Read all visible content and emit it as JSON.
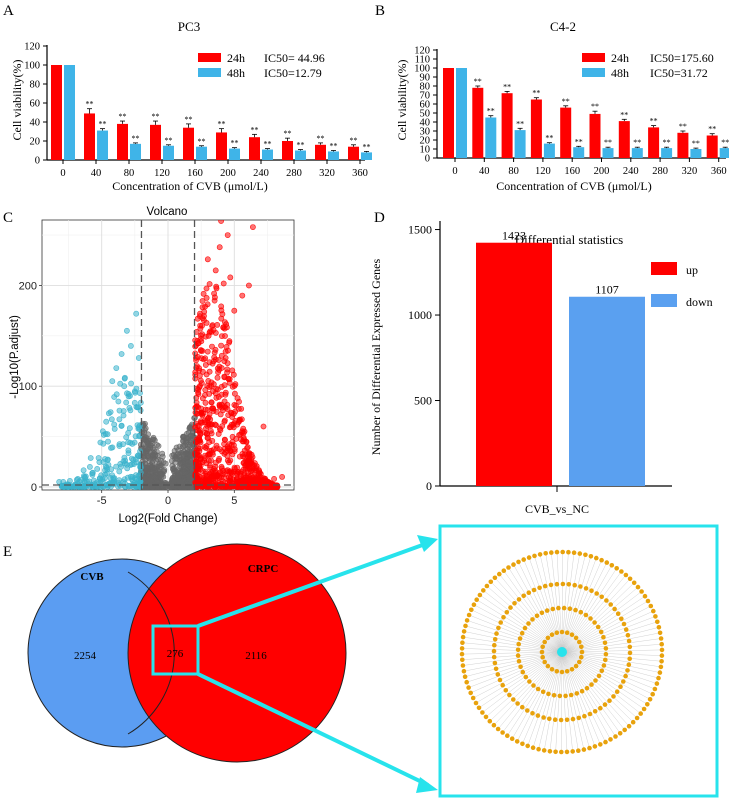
{
  "panel_labels": {
    "a": "A",
    "b": "B",
    "c": "C",
    "d": "D",
    "e": "E"
  },
  "colors": {
    "red": "#ff0000",
    "blue": "#3fb4e8",
    "teal": "#3ab3cc",
    "gray": "#666666",
    "orange": "#e8a20c",
    "cyan": "#27e3ec",
    "venn_blue": "#5b9df2",
    "down_blue": "#5aa0f0"
  },
  "chart_data": [
    {
      "id": "pc3",
      "type": "bar",
      "title": "PC3",
      "xlabel": "Concentration of CVB (μmol/L)",
      "ylabel": "Cell viability(%)",
      "categories": [
        "0",
        "40",
        "80",
        "120",
        "160",
        "200",
        "240",
        "280",
        "320",
        "360"
      ],
      "series": [
        {
          "name": "24h",
          "values": [
            100,
            49,
            38,
            37,
            34,
            29,
            24,
            20,
            16,
            14
          ]
        },
        {
          "name": "48h",
          "values": [
            100,
            31,
            17,
            15,
            14,
            12,
            11,
            10,
            9,
            8
          ]
        }
      ],
      "errors": [
        [
          0,
          5,
          3,
          4,
          4,
          4,
          3,
          3,
          2,
          2
        ],
        [
          0,
          2,
          1,
          1,
          1,
          1,
          1,
          1,
          1,
          1
        ]
      ],
      "sig": "**",
      "ic50": [
        "IC50= 44.96",
        "IC50=12.79"
      ],
      "ylim": [
        0,
        120
      ],
      "yticks": [
        0,
        20,
        40,
        60,
        80,
        100,
        120
      ]
    },
    {
      "id": "c42",
      "type": "bar",
      "title": "C4-2",
      "xlabel": "Concentration of CVB (μmol/L)",
      "ylabel": "Cell viability(%)",
      "categories": [
        "0",
        "40",
        "80",
        "120",
        "160",
        "200",
        "240",
        "280",
        "320",
        "360"
      ],
      "series": [
        {
          "name": "24h",
          "values": [
            100,
            78,
            72,
            65,
            56,
            49,
            41,
            34,
            28,
            25
          ]
        },
        {
          "name": "48h",
          "values": [
            100,
            45,
            31,
            16,
            12,
            11,
            11,
            11,
            10,
            11
          ]
        }
      ],
      "errors": [
        [
          0,
          2,
          2,
          2,
          2,
          3,
          2,
          2,
          2,
          2
        ],
        [
          0,
          2,
          2,
          1,
          1,
          1,
          1,
          1,
          1,
          1
        ]
      ],
      "sig": "**",
      "ic50": [
        "IC50=175.60",
        "IC50=31.72"
      ],
      "ylim": [
        0,
        120
      ],
      "yticks": [
        0,
        10,
        20,
        30,
        40,
        50,
        60,
        70,
        80,
        90,
        100,
        110,
        120
      ]
    },
    {
      "id": "volcano",
      "type": "scatter",
      "title": "Volcano",
      "xlabel": "Log2(Fold Change)",
      "ylabel": "-Log10(P.adjust)",
      "xlim": [
        -9.5,
        9.5
      ],
      "ylim": [
        -3,
        265
      ],
      "xticks": [
        -5,
        0,
        5
      ],
      "yticks": [
        0,
        100,
        200
      ],
      "thresholds": {
        "logfc": [
          -2,
          2
        ],
        "padj": 2
      },
      "groups": [
        "down",
        "not significant",
        "up"
      ]
    },
    {
      "id": "diff",
      "type": "bar",
      "title": "Differential statistics",
      "xlabel": "CVB_vs_NC",
      "ylabel": "Number of Differential Expressed Genes",
      "categories": [
        "up",
        "down"
      ],
      "values": [
        1423,
        1107
      ],
      "labels": [
        "1423",
        "1107"
      ],
      "ylim": [
        0,
        1550
      ],
      "yticks": [
        0,
        500,
        1000,
        1500
      ]
    }
  ],
  "venn": {
    "left_label": "CVB",
    "right_label": "CRPC",
    "left_only": "2254",
    "overlap": "276",
    "right_only": "2116"
  },
  "network": {
    "rings": [
      20,
      44,
      68,
      100
    ],
    "spokes": 120
  }
}
